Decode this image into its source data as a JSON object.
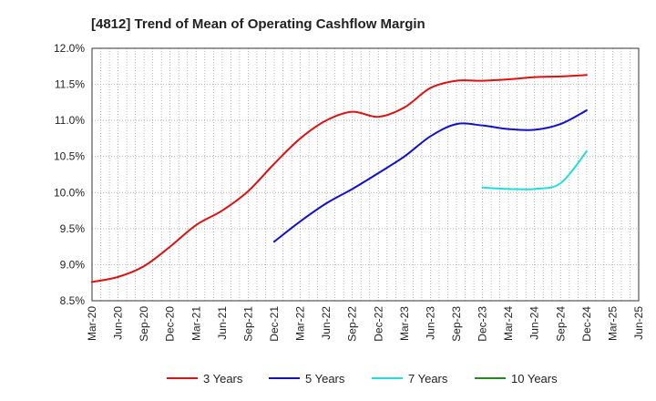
{
  "chart_data": {
    "type": "line",
    "title": "[4812]  Trend of Mean of Operating Cashflow Margin",
    "xlabel": "",
    "ylabel": "",
    "x": [
      "Mar-20",
      "Jun-20",
      "Sep-20",
      "Dec-20",
      "Mar-21",
      "Jun-21",
      "Sep-21",
      "Dec-21",
      "Mar-22",
      "Jun-22",
      "Sep-22",
      "Dec-22",
      "Mar-23",
      "Jun-23",
      "Sep-23",
      "Dec-23",
      "Mar-24",
      "Jun-24",
      "Sep-24",
      "Dec-24",
      "Mar-25",
      "Jun-25"
    ],
    "ylim": [
      8.5,
      12.0
    ],
    "yticks": [
      "8.5%",
      "9.0%",
      "9.5%",
      "10.0%",
      "10.5%",
      "11.0%",
      "11.5%",
      "12.0%"
    ],
    "yticks_values": [
      8.5,
      9.0,
      9.5,
      10.0,
      10.5,
      11.0,
      11.5,
      12.0
    ],
    "grid": true,
    "legend_position": "bottom",
    "series": [
      {
        "name": "3 Years",
        "color": "#dd1111",
        "values": [
          8.76,
          8.83,
          8.98,
          9.25,
          9.55,
          9.75,
          10.02,
          10.4,
          10.75,
          11.0,
          11.12,
          11.05,
          11.18,
          11.45,
          11.55,
          11.55,
          11.57,
          11.6,
          11.61,
          11.63,
          null,
          null
        ]
      },
      {
        "name": "5 Years",
        "color": "#1111cc",
        "values": [
          null,
          null,
          null,
          null,
          null,
          null,
          null,
          9.32,
          9.6,
          9.85,
          10.05,
          10.27,
          10.5,
          10.78,
          10.95,
          10.93,
          10.88,
          10.87,
          10.95,
          11.14,
          null,
          null
        ]
      },
      {
        "name": "7 Years",
        "color": "#22dddd",
        "values": [
          null,
          null,
          null,
          null,
          null,
          null,
          null,
          null,
          null,
          null,
          null,
          null,
          null,
          null,
          null,
          10.07,
          10.05,
          10.05,
          10.13,
          10.57,
          null,
          null
        ]
      },
      {
        "name": "10 Years",
        "color": "#228822",
        "values": [
          null,
          null,
          null,
          null,
          null,
          null,
          null,
          null,
          null,
          null,
          null,
          null,
          null,
          null,
          null,
          null,
          null,
          null,
          null,
          null,
          null,
          null
        ]
      }
    ]
  }
}
